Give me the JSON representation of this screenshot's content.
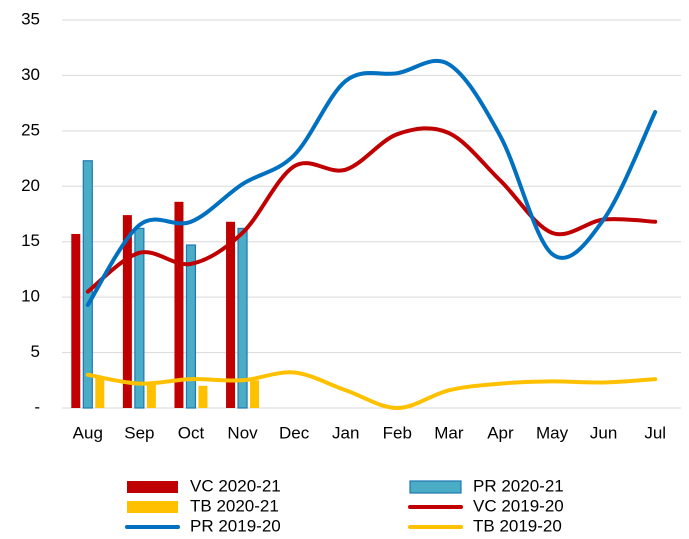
{
  "chart_data": {
    "type": "combo",
    "categories": [
      "Aug",
      "Sep",
      "Oct",
      "Nov",
      "Dec",
      "Jan",
      "Feb",
      "Mar",
      "Apr",
      "May",
      "Jun",
      "Jul"
    ],
    "ylim": [
      0,
      35
    ],
    "yticks": [
      {
        "value": 0,
        "label": "-"
      },
      5,
      10,
      15,
      20,
      25,
      30,
      35
    ],
    "grid": true,
    "series": [
      {
        "name": "VC 2020-21",
        "type": "bar",
        "color": "#c00000",
        "values": [
          15.7,
          17.4,
          18.6,
          16.8,
          null,
          null,
          null,
          null,
          null,
          null,
          null,
          null
        ]
      },
      {
        "name": "PR 2020-21",
        "type": "bar",
        "color": "#4bacc6",
        "values": [
          22.3,
          16.2,
          14.7,
          16.2,
          null,
          null,
          null,
          null,
          null,
          null,
          null,
          null
        ]
      },
      {
        "name": "TB 2020-21",
        "type": "bar",
        "color": "#ffc000",
        "values": [
          2.8,
          2.3,
          2.0,
          2.5,
          null,
          null,
          null,
          null,
          null,
          null,
          null,
          null
        ]
      },
      {
        "name": "VC 2019-20",
        "type": "line",
        "color": "#c00000",
        "values": [
          10.5,
          14,
          13,
          15.8,
          21.8,
          21.5,
          24.7,
          24.8,
          20.5,
          15.8,
          17,
          16.8
        ]
      },
      {
        "name": "PR 2019-20",
        "type": "line",
        "color": "#0070c0",
        "values": [
          9.3,
          16.5,
          16.8,
          20.2,
          22.8,
          29.5,
          30.2,
          31,
          24.5,
          13.9,
          17,
          26.7
        ]
      },
      {
        "name": "TB 2019-20",
        "type": "line",
        "color": "#ffc000",
        "values": [
          3,
          2.2,
          2.6,
          2.5,
          3.2,
          1.6,
          0,
          1.6,
          2.2,
          2.4,
          2.3,
          2.6
        ]
      }
    ]
  }
}
